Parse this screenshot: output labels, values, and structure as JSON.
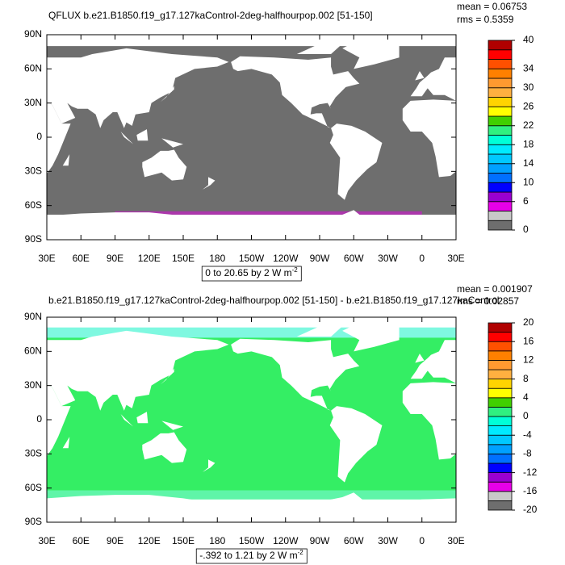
{
  "chart_data": [
    {
      "type": "map",
      "title": "QFLUX b.e21.B1850.f19_g17.127kaControl-2deg-halfhourpop.002 [51-150]",
      "mean": "mean = 0.06753",
      "rms": "rms = 0.5359",
      "ocean_color": "#6e6e6e",
      "xlim": [
        30,
        390
      ],
      "ylim": [
        -90,
        90
      ],
      "xticks": [
        {
          "value": 30,
          "label": "30E"
        },
        {
          "value": 60,
          "label": "60E"
        },
        {
          "value": 90,
          "label": "90E"
        },
        {
          "value": 120,
          "label": "120E"
        },
        {
          "value": 150,
          "label": "150E"
        },
        180,
        {
          "value": 210,
          "label": "150W"
        },
        {
          "value": 240,
          "label": "120W"
        },
        {
          "value": 270,
          "label": "90W"
        },
        {
          "value": 300,
          "label": "60W"
        },
        {
          "value": 330,
          "label": "30W"
        },
        {
          "value": 360,
          "label": "0"
        },
        {
          "value": 390,
          "label": "30E"
        }
      ],
      "yticks": [
        {
          "value": 90,
          "label": "90N"
        },
        {
          "value": 60,
          "label": "60N"
        },
        {
          "value": 30,
          "label": "30N"
        },
        0,
        {
          "value": -30,
          "label": "30S"
        },
        {
          "value": -60,
          "label": "60S"
        },
        {
          "value": -90,
          "label": "90S"
        }
      ],
      "info": "0 to 20.65 by 2  W m",
      "info_exponent": "-2",
      "colorbar": {
        "lim": [
          0,
          40
        ],
        "ticks": [
          0,
          6,
          10,
          14,
          18,
          22,
          26,
          30,
          34,
          40
        ],
        "colors": [
          "#6e6e6e",
          "#c8c8c8",
          "#e800e8",
          "#9a00d0",
          "#0000ff",
          "#0070ff",
          "#00a0ff",
          "#00c8ff",
          "#00eaff",
          "#00ffd8",
          "#30f080",
          "#40d000",
          "#ffff00",
          "#ffd400",
          "#ffb040",
          "#ff9a30",
          "#ff8000",
          "#ff5000",
          "#ff0000",
          "#b00000"
        ]
      }
    },
    {
      "type": "map",
      "title": "b.e21.B1850.f19_g17.127kaControl-2deg-halfhourpop.002 [51-150] - b.e21.B1850.f19_g17.127kaControl",
      "mean": "mean = 0.001907",
      "rms": "rms = 0.02857",
      "ocean_color": "#34ee64",
      "xlim": [
        30,
        390
      ],
      "ylim": [
        -90,
        90
      ],
      "xticks": [
        {
          "value": 30,
          "label": "30E"
        },
        {
          "value": 60,
          "label": "60E"
        },
        {
          "value": 90,
          "label": "90E"
        },
        {
          "value": 120,
          "label": "120E"
        },
        {
          "value": 150,
          "label": "150E"
        },
        180,
        {
          "value": 210,
          "label": "150W"
        },
        {
          "value": 240,
          "label": "120W"
        },
        {
          "value": 270,
          "label": "90W"
        },
        {
          "value": 300,
          "label": "60W"
        },
        {
          "value": 330,
          "label": "30W"
        },
        {
          "value": 360,
          "label": "0"
        },
        {
          "value": 390,
          "label": "30E"
        }
      ],
      "yticks": [
        {
          "value": 90,
          "label": "90N"
        },
        {
          "value": 60,
          "label": "60N"
        },
        {
          "value": 30,
          "label": "30N"
        },
        0,
        {
          "value": -30,
          "label": "30S"
        },
        {
          "value": -60,
          "label": "60S"
        },
        {
          "value": -90,
          "label": "90S"
        }
      ],
      "info": "-.392 to 1.21 by 2  W m",
      "info_exponent": "-2",
      "colorbar": {
        "lim": [
          -20,
          20
        ],
        "ticks": [
          -20,
          -16,
          -12,
          -8,
          -4,
          0,
          4,
          8,
          12,
          16,
          20
        ],
        "colors": [
          "#6e6e6e",
          "#c8c8c8",
          "#e800e8",
          "#9a00d0",
          "#0000ff",
          "#0070ff",
          "#00a0ff",
          "#00c8ff",
          "#00eaff",
          "#00ffd8",
          "#30f080",
          "#40d000",
          "#ffff00",
          "#ffd400",
          "#ffb040",
          "#ff9a30",
          "#ff8000",
          "#ff5000",
          "#ff0000",
          "#b00000"
        ]
      }
    }
  ]
}
